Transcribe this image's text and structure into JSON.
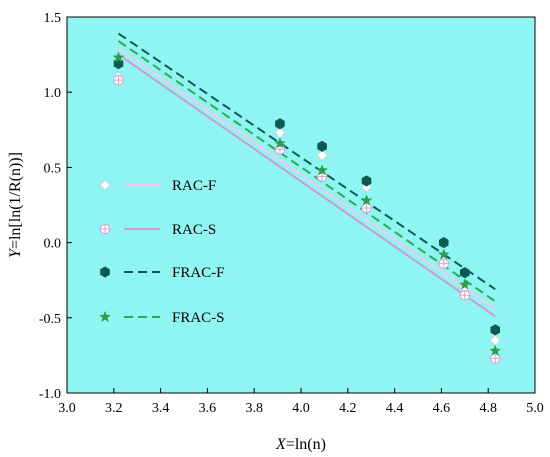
{
  "chart_data": {
    "type": "scatter",
    "background": "#8ef5f2",
    "xlim": [
      3.0,
      5.0
    ],
    "ylim": [
      -1.0,
      1.5
    ],
    "xticks": [
      3.0,
      3.2,
      3.4,
      3.6,
      3.8,
      4.0,
      4.2,
      4.4,
      4.6,
      4.8,
      5.0
    ],
    "yticks": [
      -1.0,
      -0.5,
      0.0,
      0.5,
      1.0,
      1.5
    ],
    "xtick_labels": [
      "3.0",
      "3.2",
      "3.4",
      "3.6",
      "3.8",
      "4.0",
      "4.2",
      "4.4",
      "4.6",
      "4.8",
      "5.0"
    ],
    "ytick_labels": [
      "-1.0",
      "-0.5",
      "0.0",
      "0.5",
      "1.0",
      "1.5"
    ],
    "xlabel": {
      "italic": "X",
      "rest": "=ln(n)"
    },
    "ylabel": {
      "italic": "Y",
      "rest": "=ln[ln(1/R(n))]"
    },
    "legend_position": "left",
    "series": [
      {
        "name": "RAC-F",
        "marker": "diamond",
        "color": "#ffffff",
        "stroke": "#cfcfcf",
        "line_color": "#f4c7e8",
        "line_style": "solid",
        "x": [
          3.22,
          3.91,
          4.09,
          4.28,
          4.61,
          4.7,
          4.83
        ],
        "y": [
          1.1,
          0.73,
          0.58,
          0.37,
          -0.12,
          -0.3,
          -0.65
        ],
        "fit": {
          "x": [
            3.22,
            4.83
          ],
          "y": [
            1.29,
            -0.44
          ]
        }
      },
      {
        "name": "RAC-S",
        "marker": "circle-plus",
        "color": "#ffffff",
        "stroke": "#d3a0d4",
        "line_color": "#cf9bd3",
        "line_style": "solid",
        "x": [
          3.22,
          3.91,
          4.09,
          4.28,
          4.61,
          4.7,
          4.83
        ],
        "y": [
          1.08,
          0.62,
          0.44,
          0.23,
          -0.14,
          -0.35,
          -0.77
        ],
        "fit": {
          "x": [
            3.22,
            4.83
          ],
          "y": [
            1.25,
            -0.49
          ]
        }
      },
      {
        "name": "FRAC-F",
        "marker": "hexagon",
        "color": "#0b5a54",
        "stroke": "#0b5a54",
        "line_color": "#0b5a54",
        "line_style": "dashed",
        "x": [
          3.22,
          3.91,
          4.09,
          4.28,
          4.61,
          4.7,
          4.83
        ],
        "y": [
          1.19,
          0.79,
          0.64,
          0.41,
          0.0,
          -0.2,
          -0.58
        ],
        "fit": {
          "x": [
            3.22,
            4.83
          ],
          "y": [
            1.39,
            -0.31
          ]
        }
      },
      {
        "name": "FRAC-S",
        "marker": "star",
        "color": "#2e9e4a",
        "stroke": "#2e9e4a",
        "line_color": "#32a850",
        "line_style": "dashed",
        "x": [
          3.22,
          3.91,
          4.09,
          4.28,
          4.61,
          4.7,
          4.83
        ],
        "y": [
          1.23,
          0.66,
          0.48,
          0.28,
          -0.08,
          -0.28,
          -0.72
        ],
        "fit": {
          "x": [
            3.22,
            4.83
          ],
          "y": [
            1.34,
            -0.39
          ]
        }
      }
    ]
  }
}
